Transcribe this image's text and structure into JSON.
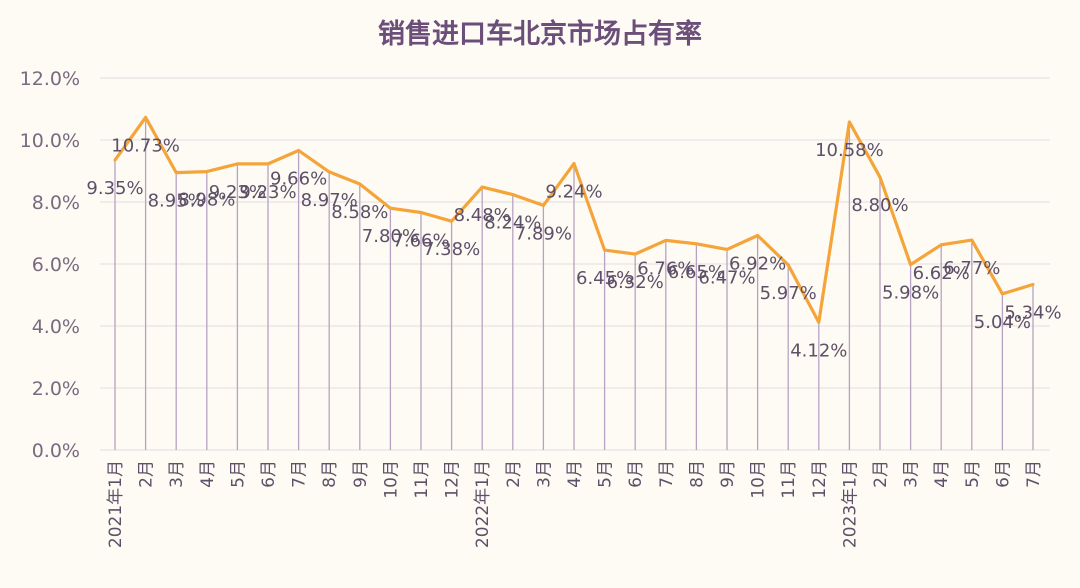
{
  "chart_data": {
    "type": "line",
    "title": "销售进口车北京市场占有率",
    "xlabel": "",
    "ylabel": "",
    "ylim": [
      0,
      12
    ],
    "y_ticks": [
      "0.0%",
      "2.0%",
      "4.0%",
      "6.0%",
      "8.0%",
      "10.0%",
      "12.0%"
    ],
    "grid": true,
    "legend": "none",
    "categories": [
      "2021年1月",
      "2月",
      "3月",
      "4月",
      "5月",
      "6月",
      "7月",
      "8月",
      "9月",
      "10月",
      "11月",
      "12月",
      "2022年1月",
      "2月",
      "3月",
      "4月",
      "5月",
      "6月",
      "7月",
      "8月",
      "9月",
      "10月",
      "11月",
      "12月",
      "2023年1月",
      "2月",
      "3月",
      "4月",
      "5月",
      "6月",
      "7月"
    ],
    "series": [
      {
        "values": [
          9.35,
          10.73,
          8.95,
          8.98,
          9.23,
          9.23,
          9.66,
          8.97,
          8.58,
          7.8,
          7.66,
          7.38,
          8.48,
          8.24,
          7.89,
          9.24,
          6.45,
          6.32,
          6.76,
          6.65,
          6.47,
          6.92,
          5.97,
          4.12,
          10.58,
          8.8,
          5.98,
          6.62,
          6.77,
          5.04,
          5.34
        ],
        "labels": [
          "9.35%",
          "10.73%",
          "8.95%",
          "8.98%",
          "9.23%",
          "9.23%",
          "9.66%",
          "8.97%",
          "8.58%",
          "7.80%",
          "7.66%",
          "7.38%",
          "8.48%",
          "8.24%",
          "7.89%",
          "9.24%",
          "6.45%",
          "6.32%",
          "6.76%",
          "6.65%",
          "6.47%",
          "6.92%",
          "5.97%",
          "4.12%",
          "10.58%",
          "8.80%",
          "5.98%",
          "6.62%",
          "6.77%",
          "5.04%",
          "5.34%"
        ]
      }
    ],
    "colors": {
      "line": "#f5a43a",
      "drop_lines": "#b7a2c4",
      "grid": "#e2dce4",
      "axis_text": "#7a6a80",
      "title": "#6b4f7a"
    }
  }
}
